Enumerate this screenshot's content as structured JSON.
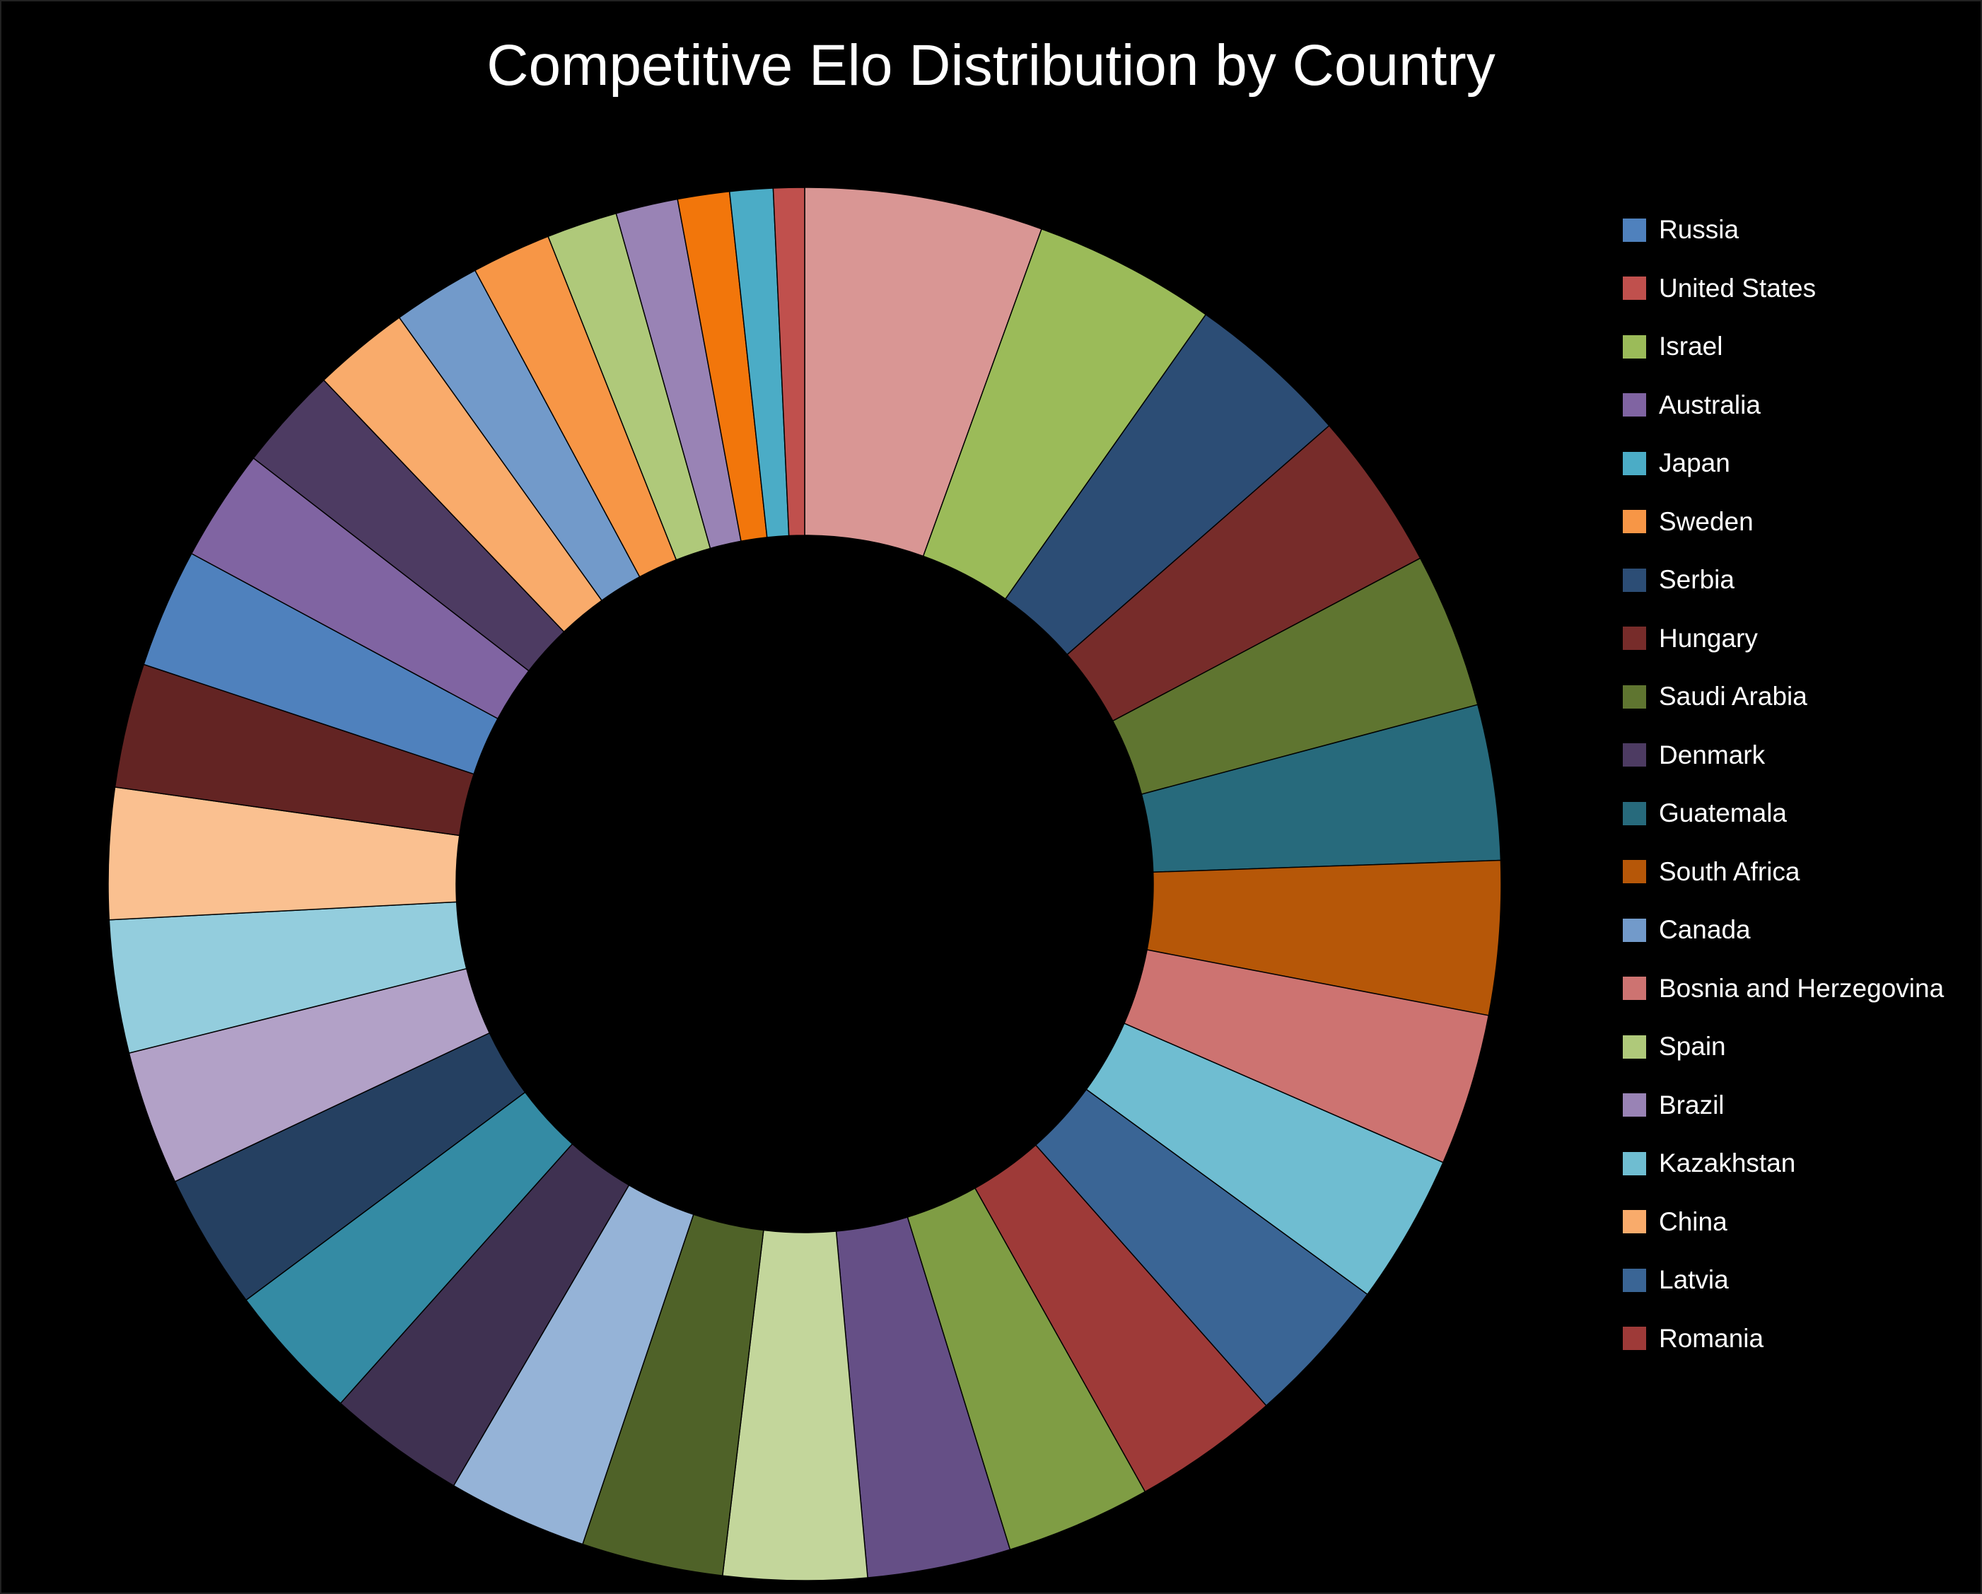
{
  "chart_data": {
    "type": "pie",
    "variant": "donut",
    "title": "Competitive Elo Distribution by Country",
    "legend_position": "right",
    "legend": [
      {
        "label": "Russia",
        "color": "#4F81BD"
      },
      {
        "label": "United States",
        "color": "#C0504D"
      },
      {
        "label": "Israel",
        "color": "#9BBB59"
      },
      {
        "label": "Australia",
        "color": "#8064A2"
      },
      {
        "label": "Japan",
        "color": "#4BACC6"
      },
      {
        "label": "Sweden",
        "color": "#F79646"
      },
      {
        "label": "Serbia",
        "color": "#2C4D75"
      },
      {
        "label": "Hungary",
        "color": "#772C2A"
      },
      {
        "label": "Saudi Arabia",
        "color": "#5F7530"
      },
      {
        "label": "Denmark",
        "color": "#4D3B62"
      },
      {
        "label": "Guatemala",
        "color": "#276A7C"
      },
      {
        "label": "South Africa",
        "color": "#B65708"
      },
      {
        "label": "Canada",
        "color": "#729ACA"
      },
      {
        "label": "Bosnia and Herzegovina",
        "color": "#CD7371"
      },
      {
        "label": "Spain",
        "color": "#AFC97A"
      },
      {
        "label": "Brazil",
        "color": "#9983B5"
      },
      {
        "label": "Kazakhstan",
        "color": "#6FBDD1"
      },
      {
        "label": "China",
        "color": "#F9AB6B"
      },
      {
        "label": "Latvia",
        "color": "#3A6595"
      },
      {
        "label": "Romania",
        "color": "#9E3A38"
      }
    ],
    "slices": [
      {
        "value": 6.9,
        "color": "#D99694"
      },
      {
        "value": 5.3,
        "color": "#9BBB59"
      },
      {
        "value": 4.75,
        "color": "#2C4D75"
      },
      {
        "value": 4.6,
        "color": "#772C2A"
      },
      {
        "value": 4.5,
        "color": "#5F7530"
      },
      {
        "value": 4.5,
        "color": "#276A7C"
      },
      {
        "value": 4.45,
        "color": "#B65708"
      },
      {
        "value": 4.4,
        "color": "#CD7371"
      },
      {
        "value": 4.35,
        "color": "#6FBDD1"
      },
      {
        "value": 4.3,
        "color": "#3A6595"
      },
      {
        "value": 4.25,
        "color": "#9E3A38"
      },
      {
        "value": 4.2,
        "color": "#7F9D44"
      },
      {
        "value": 4.15,
        "color": "#654F86"
      },
      {
        "value": 4.15,
        "color": "#C3D69B"
      },
      {
        "value": 4.1,
        "color": "#4F6228"
      },
      {
        "value": 4.05,
        "color": "#95B3D7"
      },
      {
        "value": 4.0,
        "color": "#3F3151"
      },
      {
        "value": 4.0,
        "color": "#348BA4"
      },
      {
        "value": 3.95,
        "color": "#254061"
      },
      {
        "value": 3.9,
        "color": "#B2A1C7"
      },
      {
        "value": 3.85,
        "color": "#93CDDD"
      },
      {
        "value": 3.8,
        "color": "#FAC090"
      },
      {
        "value": 3.6,
        "color": "#632423"
      },
      {
        "value": 3.45,
        "color": "#4F81BD"
      },
      {
        "value": 3.25,
        "color": "#8064A2"
      },
      {
        "value": 3.0,
        "color": "#4D3B62"
      },
      {
        "value": 2.8,
        "color": "#F9AB6B"
      },
      {
        "value": 2.55,
        "color": "#729ACA"
      },
      {
        "value": 2.3,
        "color": "#F79646"
      },
      {
        "value": 2.05,
        "color": "#AFC97A"
      },
      {
        "value": 1.8,
        "color": "#9983B5"
      },
      {
        "value": 1.5,
        "color": "#F2760B"
      },
      {
        "value": 1.25,
        "color": "#4BACC6"
      },
      {
        "value": 0.9,
        "color": "#C0504D"
      }
    ]
  }
}
